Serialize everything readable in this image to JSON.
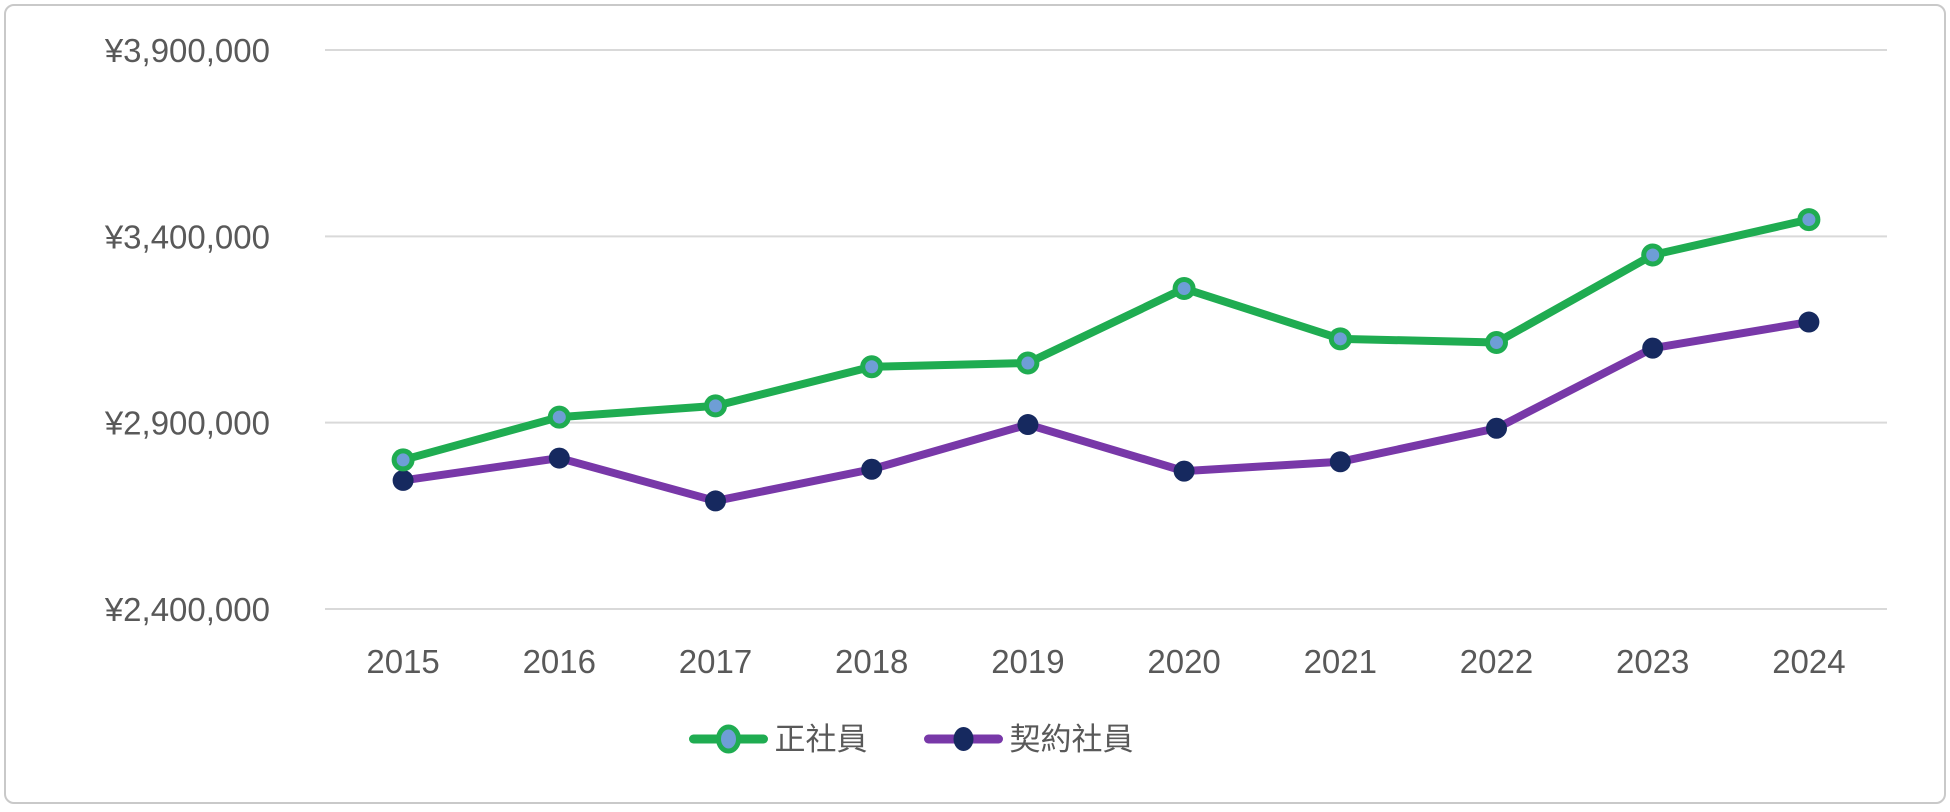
{
  "chart_data": {
    "type": "line",
    "title": "",
    "xlabel": "",
    "ylabel": "",
    "x": [
      "2015",
      "2016",
      "2017",
      "2018",
      "2019",
      "2020",
      "2021",
      "2022",
      "2023",
      "2024"
    ],
    "series": [
      {
        "name": "正社員",
        "color": "#1FAC51",
        "marker": "ring",
        "marker_fill": "#6E9ED6",
        "values": [
          2800000,
          2915000,
          2945000,
          3050000,
          3060000,
          3260000,
          3125000,
          3115000,
          3350000,
          3445000
        ]
      },
      {
        "name": "契約社員",
        "color": "#7838A8",
        "marker": "solid",
        "marker_fill": "#16295F",
        "values": [
          2745000,
          2805000,
          2690000,
          2775000,
          2895000,
          2770000,
          2795000,
          2885000,
          3100000,
          3170000
        ]
      }
    ],
    "y_axis": {
      "min": 2400000,
      "max": 3900000,
      "step": 500000,
      "ticks": [
        {
          "value": 2400000,
          "label": "¥2,400,000"
        },
        {
          "value": 2900000,
          "label": "¥2,900,000"
        },
        {
          "value": 3400000,
          "label": "¥3,400,000"
        },
        {
          "value": 3900000,
          "label": "¥3,900,000"
        }
      ]
    },
    "grid": true,
    "legend_position": "bottom",
    "colors": {
      "grid": "#D9D9D9",
      "axis_text": "#595959",
      "frame_border": "#C9C9C9",
      "background": "#FFFFFF"
    }
  }
}
